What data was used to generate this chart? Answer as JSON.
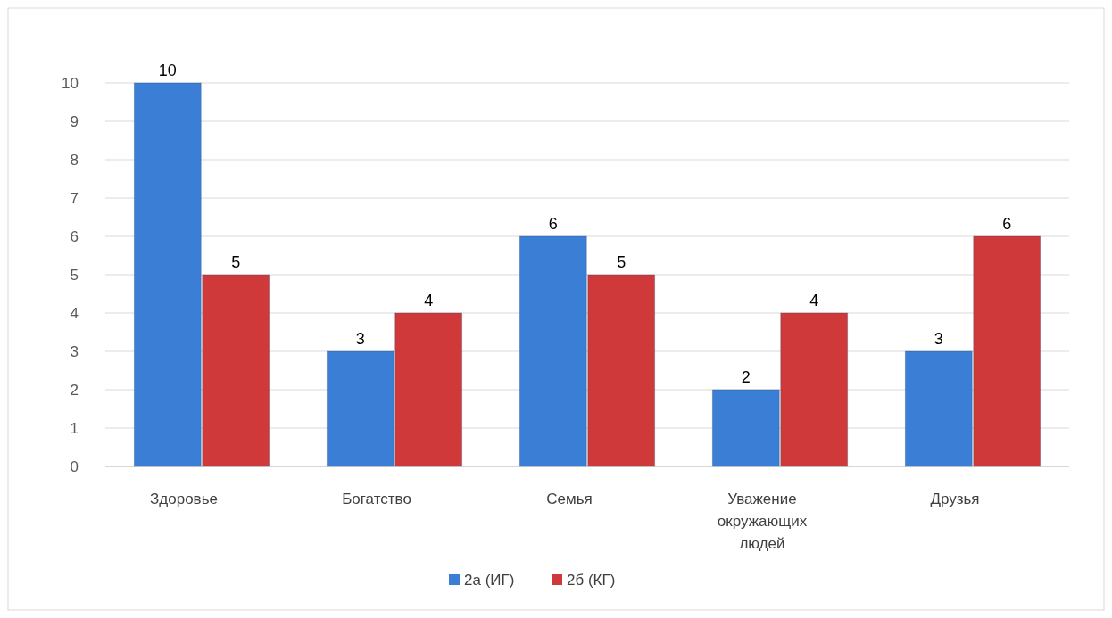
{
  "chart_data": {
    "type": "bar",
    "categories": [
      "Здоровье",
      "Богатство",
      "Семья",
      "Уважение окружающих людей",
      "Друзья"
    ],
    "series": [
      {
        "name": "2а (ИГ)",
        "color": "#3a7fd5",
        "values": [
          10,
          3,
          6,
          2,
          3
        ]
      },
      {
        "name": "2б (КГ)",
        "color": "#d0393a",
        "values": [
          5,
          4,
          5,
          4,
          6
        ]
      }
    ],
    "ylim": [
      0,
      10
    ],
    "yticks": [
      0,
      1,
      2,
      3,
      4,
      5,
      6,
      7,
      8,
      9,
      10
    ],
    "grid": "y",
    "legend": "bottom",
    "data_labels": true
  }
}
